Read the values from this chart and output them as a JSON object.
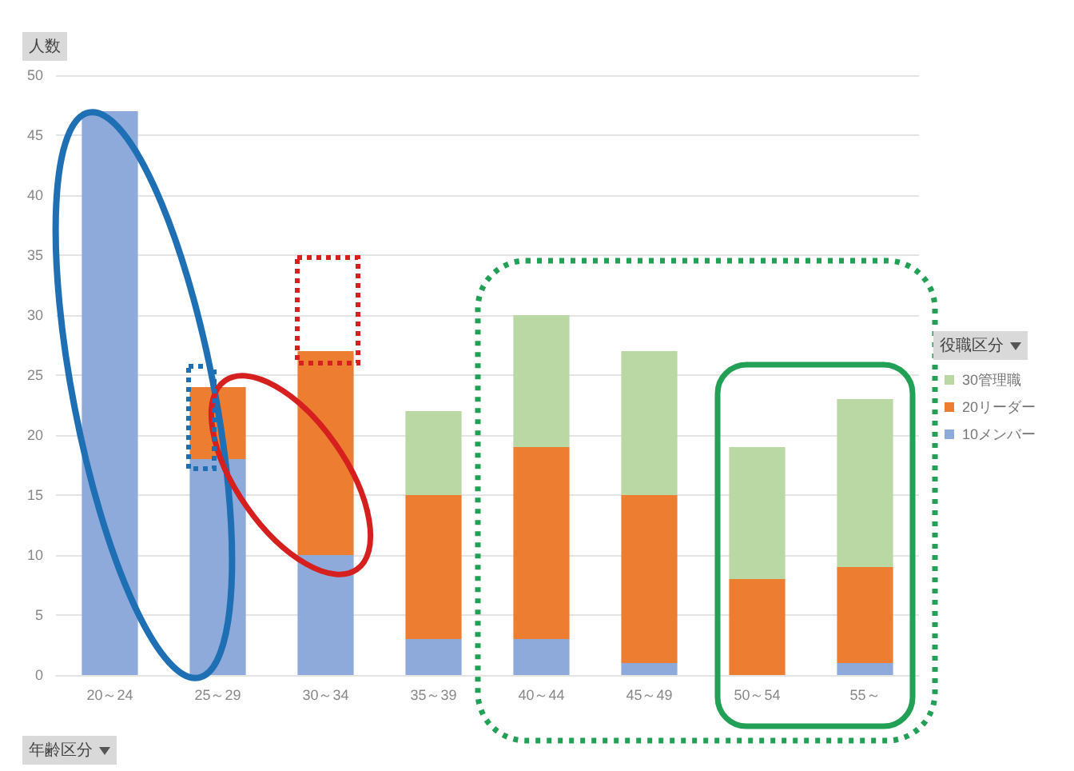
{
  "chart_data": {
    "type": "bar",
    "stacked": true,
    "xlabel": "年齢区分",
    "ylabel": "人数",
    "legend_title": "役職区分",
    "categories": [
      "20～24",
      "25～29",
      "30～34",
      "35～39",
      "40～44",
      "45～49",
      "50～54",
      "55～"
    ],
    "series": [
      {
        "name": "10メンバー",
        "color": "#8eaadb",
        "values": [
          47,
          18,
          10,
          3,
          3,
          1,
          0,
          1
        ]
      },
      {
        "name": "20リーダー",
        "color": "#ed7d31",
        "values": [
          0,
          6,
          17,
          12,
          16,
          14,
          8,
          8
        ]
      },
      {
        "name": "30管理職",
        "color": "#b9d8a4",
        "values": [
          0,
          0,
          0,
          7,
          11,
          12,
          11,
          14
        ]
      }
    ],
    "ylim": [
      0,
      50
    ],
    "yticks": [
      0,
      5,
      10,
      15,
      20,
      25,
      30,
      35,
      40,
      45,
      50
    ],
    "grid": "y",
    "legend": "right"
  }
}
